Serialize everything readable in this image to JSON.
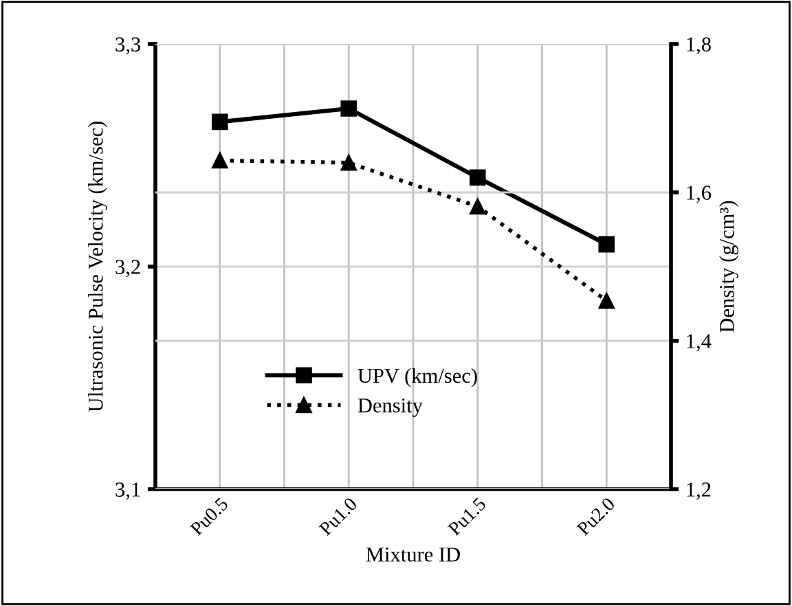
{
  "chart_data": {
    "type": "line",
    "xlabel": "Mixture ID",
    "ylabel": "Ultrasonic Pulse Velocity (km/sec)",
    "y2label": "Density (g/cm³)",
    "categories": [
      "Pu0.5",
      "Pu1.0",
      "Pu1.5",
      "Pu2.0"
    ],
    "series": [
      {
        "name": "UPV (km/sec)",
        "color": "#000000",
        "values": [
          3.265,
          3.271,
          3.24,
          3.21
        ],
        "marker": "square",
        "line_style": "solid"
      },
      {
        "name": "Density",
        "color": "#000000",
        "values": [
          1.643,
          1.64,
          1.581,
          1.454
        ],
        "marker": "triangle",
        "line_style": "dotted",
        "axis": "y2"
      }
    ],
    "ylim": [
      3.1,
      3.3
    ],
    "yticks": [
      {
        "value": 3.1,
        "label": "3,1"
      },
      {
        "value": 3.2,
        "label": "3,2"
      },
      {
        "value": 3.3,
        "label": "3,3"
      }
    ],
    "y2lim": [
      1.2,
      1.8
    ],
    "y2ticks": [
      {
        "value": 1.2,
        "label": "1,2"
      },
      {
        "value": 1.4,
        "label": "1,4"
      },
      {
        "value": 1.6,
        "label": "1,6"
      },
      {
        "value": 1.8,
        "label": "1,8"
      }
    ],
    "grid": true,
    "legend": "bottom left"
  }
}
